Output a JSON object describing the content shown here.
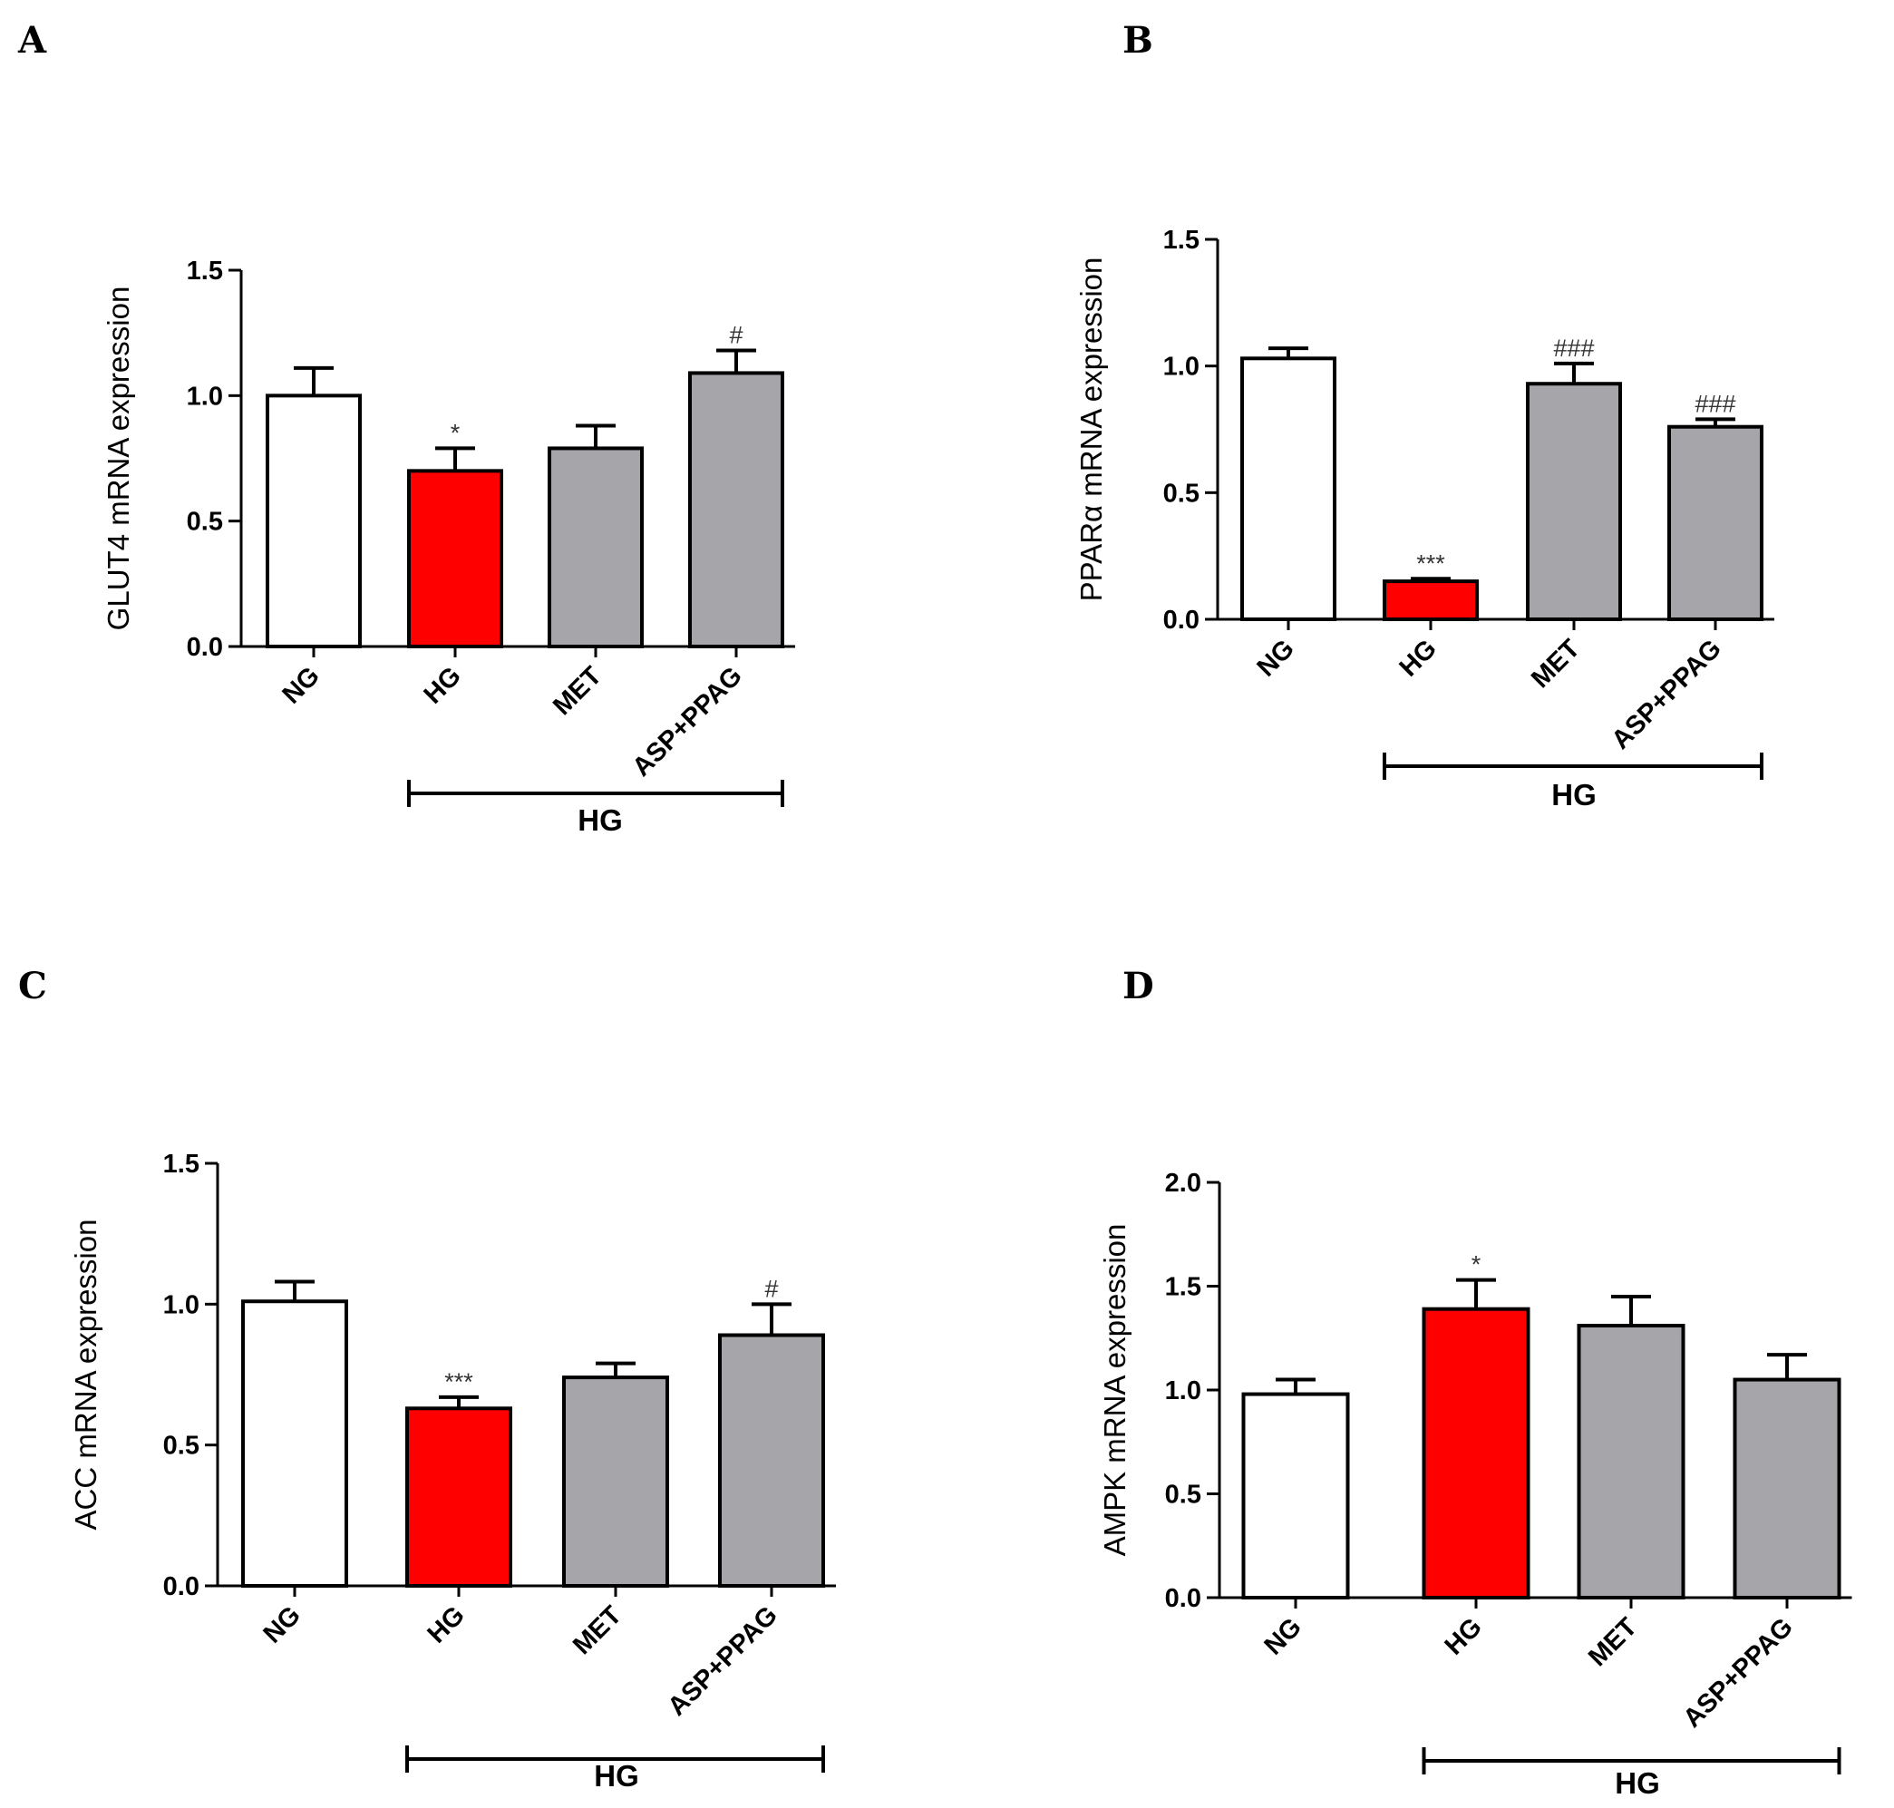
{
  "chart_data": [
    {
      "panel": "A",
      "type": "bar",
      "ylabel": "GLUT4 mRNA expression",
      "categories": [
        "NG",
        "HG",
        "MET",
        "ASP+PPAG"
      ],
      "values": [
        1.0,
        0.7,
        0.79,
        1.09
      ],
      "errors": [
        0.11,
        0.09,
        0.09,
        0.09
      ],
      "annotations": [
        "",
        "*",
        "",
        "#"
      ],
      "bar_colors": [
        "#ffffff",
        "#ff0000",
        "#a6a6aa",
        "#a6a6aa"
      ],
      "ylim": [
        0,
        1.5
      ],
      "yticks": [
        0.0,
        0.5,
        1.0,
        1.5
      ],
      "ytick_labels": [
        "0.0",
        "0.5",
        "1.0",
        "1.5"
      ],
      "group": {
        "label": "HG",
        "from": 1,
        "to": 3
      }
    },
    {
      "panel": "B",
      "type": "bar",
      "ylabel": "PPARα mRNA expression",
      "categories": [
        "NG",
        "HG",
        "MET",
        "ASP+PPAG"
      ],
      "values": [
        1.03,
        0.15,
        0.93,
        0.76
      ],
      "errors": [
        0.04,
        0.01,
        0.08,
        0.03
      ],
      "annotations": [
        "",
        "***",
        "###",
        "###"
      ],
      "bar_colors": [
        "#ffffff",
        "#ff0000",
        "#a6a6aa",
        "#a6a6aa"
      ],
      "ylim": [
        0,
        1.5
      ],
      "yticks": [
        0.0,
        0.5,
        1.0,
        1.5
      ],
      "ytick_labels": [
        "0.0",
        "0.5",
        "1.0",
        "1.5"
      ],
      "group": {
        "label": "HG",
        "from": 1,
        "to": 3
      }
    },
    {
      "panel": "C",
      "type": "bar",
      "ylabel": "ACC mRNA expression",
      "categories": [
        "NG",
        "HG",
        "MET",
        "ASP+PPAG"
      ],
      "values": [
        1.01,
        0.63,
        0.74,
        0.89
      ],
      "errors": [
        0.07,
        0.04,
        0.05,
        0.11
      ],
      "annotations": [
        "",
        "***",
        "",
        "#"
      ],
      "bar_colors": [
        "#ffffff",
        "#ff0000",
        "#a6a6aa",
        "#a6a6aa"
      ],
      "ylim": [
        0,
        1.5
      ],
      "yticks": [
        0.0,
        0.5,
        1.0,
        1.5
      ],
      "ytick_labels": [
        "0.0",
        "0.5",
        "1.0",
        "1.5"
      ],
      "group": {
        "label": "HG",
        "from": 1,
        "to": 3
      }
    },
    {
      "panel": "D",
      "type": "bar",
      "ylabel": "AMPK mRNA expression",
      "categories": [
        "NG",
        "HG",
        "MET",
        "ASP+PPAG"
      ],
      "values": [
        0.98,
        1.39,
        1.31,
        1.05
      ],
      "errors": [
        0.07,
        0.14,
        0.14,
        0.12
      ],
      "annotations": [
        "",
        "*",
        "",
        ""
      ],
      "bar_colors": [
        "#ffffff",
        "#ff0000",
        "#a6a6aa",
        "#a6a6aa"
      ],
      "ylim": [
        0,
        2.0
      ],
      "yticks": [
        0.0,
        0.5,
        1.0,
        1.5,
        2.0
      ],
      "ytick_labels": [
        "0.0",
        "0.5",
        "1.0",
        "1.5",
        "2.0"
      ],
      "group": {
        "label": "HG",
        "from": 1,
        "to": 3
      }
    }
  ]
}
